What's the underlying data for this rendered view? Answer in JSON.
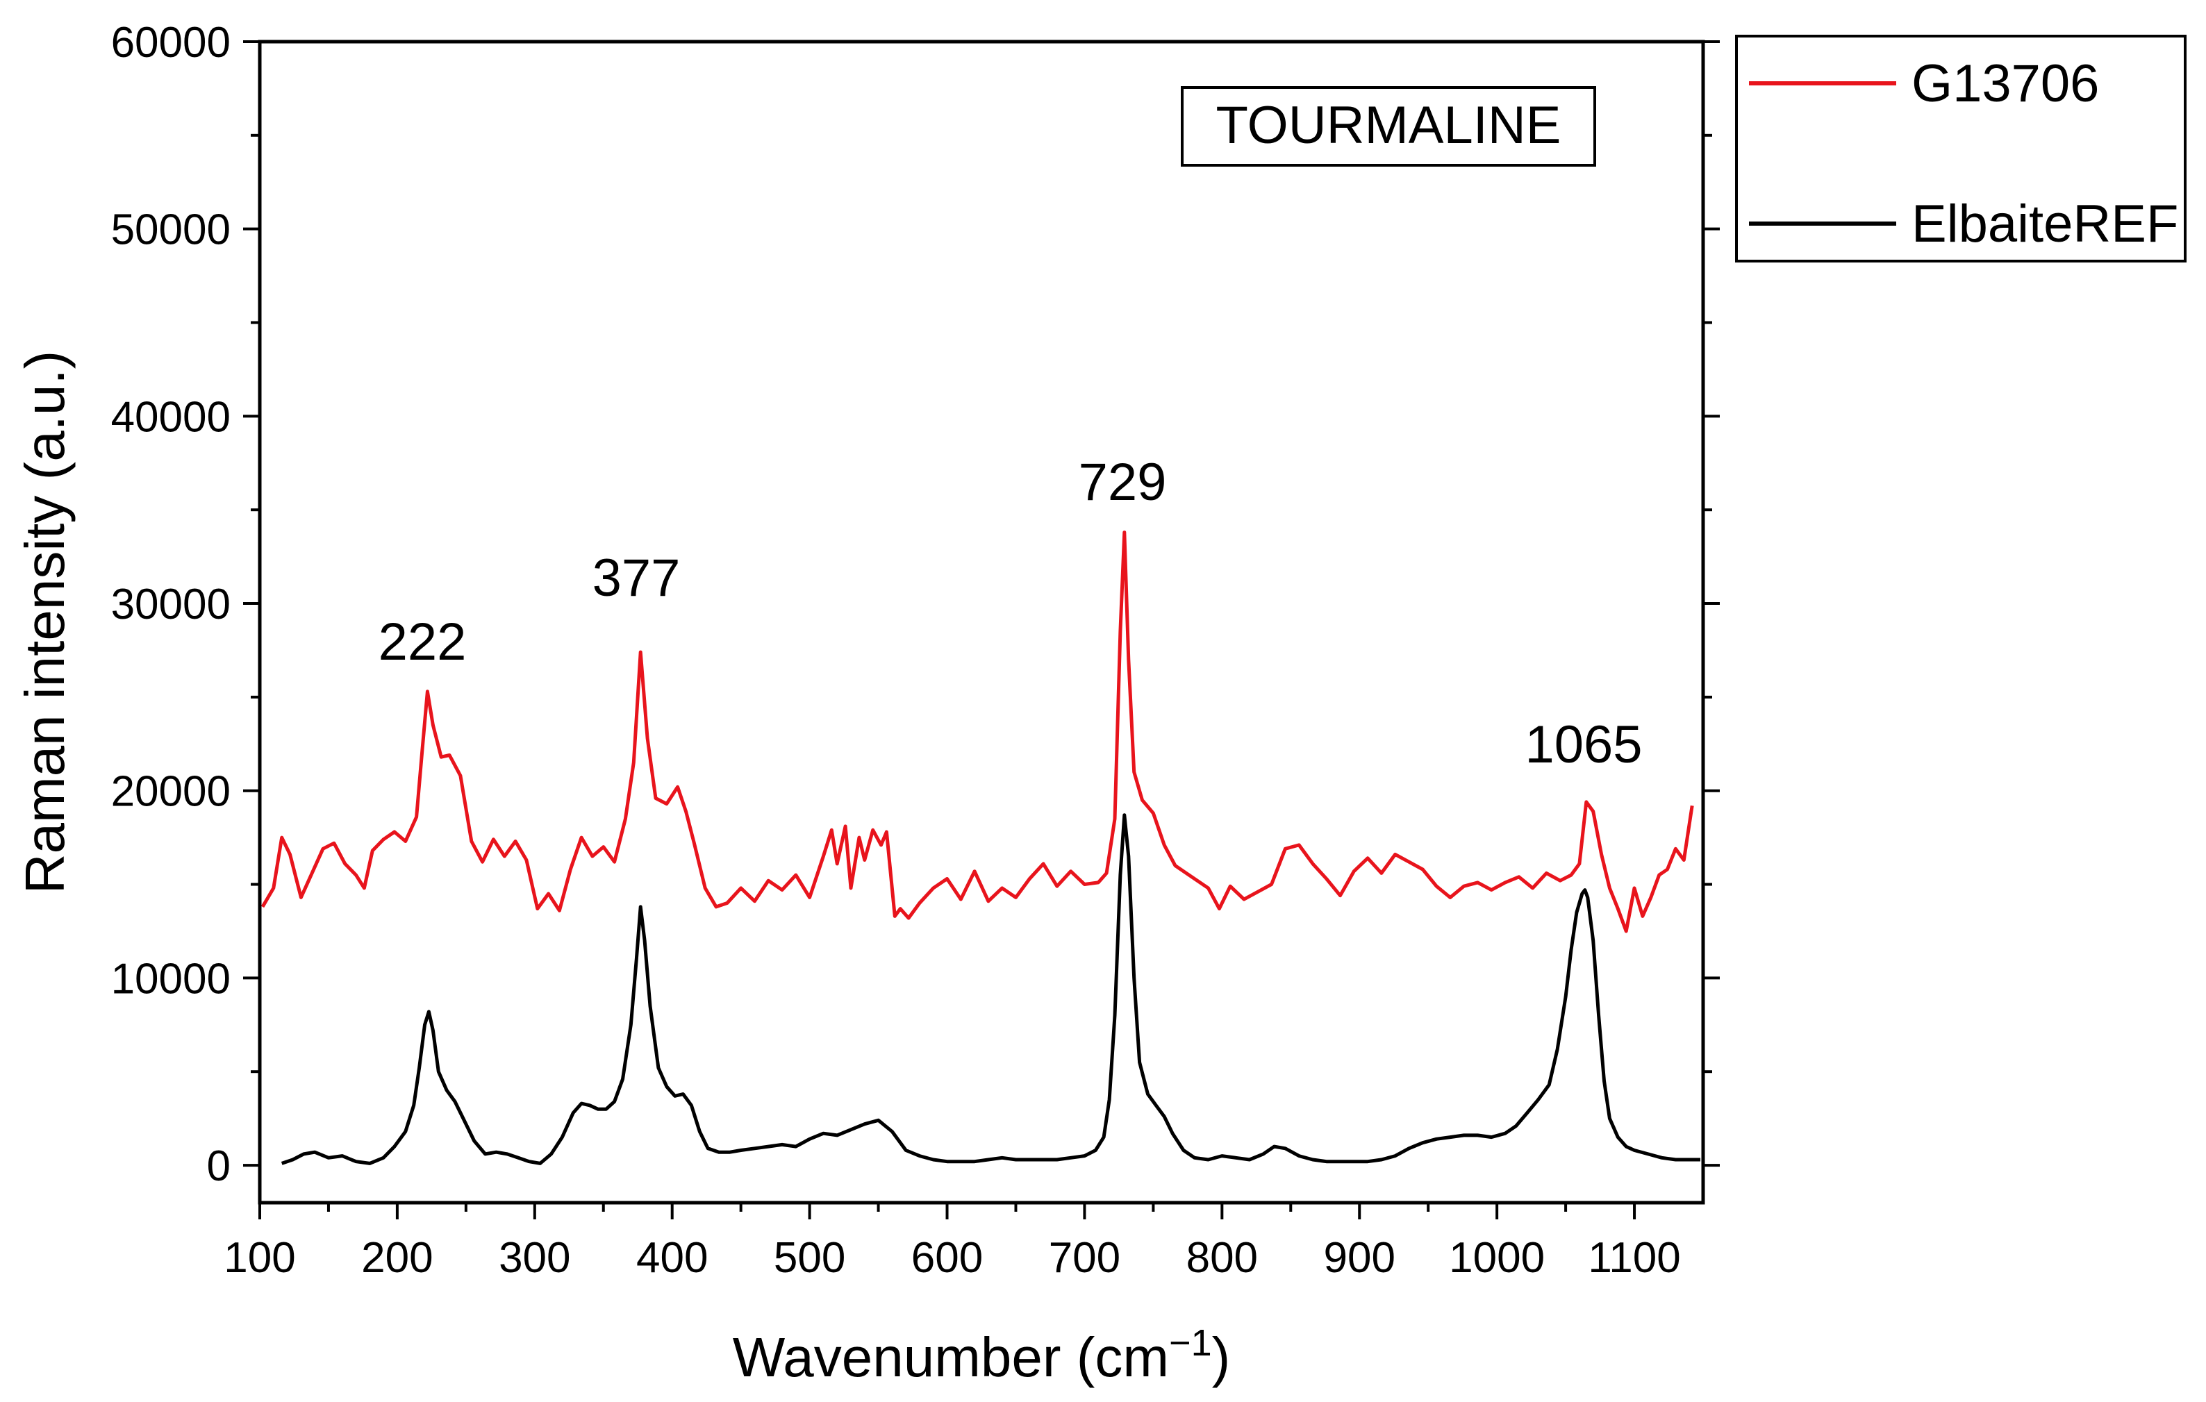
{
  "chart_data": {
    "type": "line",
    "title": "",
    "xlabel": "Wavenumber (cm",
    "xlabel_sup": "−1",
    "xlabel_close": ")",
    "ylabel": "Raman intensity (a.u.)",
    "xlim": [
      100,
      1150
    ],
    "ylim": [
      -2000,
      60000
    ],
    "xticks": [
      100,
      200,
      300,
      400,
      500,
      600,
      700,
      800,
      900,
      1000,
      1100
    ],
    "yticks": [
      0,
      10000,
      20000,
      30000,
      40000,
      50000,
      60000
    ],
    "grid": false,
    "legend_position": "outside-top-right",
    "inset_label": "TOURMALINE",
    "annotations": [
      "222",
      "377",
      "729",
      "1065"
    ],
    "series": [
      {
        "name": "G13706",
        "color": "#e8141c",
        "x": [
          102,
          110,
          116,
          122,
          130,
          138,
          146,
          154,
          162,
          170,
          176,
          182,
          190,
          198,
          206,
          214,
          218,
          222,
          226,
          232,
          238,
          246,
          254,
          262,
          270,
          278,
          286,
          294,
          302,
          310,
          318,
          326,
          334,
          342,
          350,
          358,
          366,
          372,
          377,
          382,
          388,
          396,
          404,
          410,
          416,
          424,
          432,
          440,
          450,
          460,
          470,
          480,
          490,
          500,
          510,
          516,
          520,
          526,
          530,
          536,
          540,
          546,
          552,
          556,
          562,
          566,
          572,
          580,
          590,
          600,
          610,
          620,
          630,
          640,
          650,
          660,
          670,
          680,
          690,
          700,
          710,
          716,
          722,
          726,
          729,
          732,
          736,
          742,
          750,
          758,
          766,
          774,
          782,
          790,
          798,
          806,
          816,
          826,
          836,
          846,
          856,
          866,
          876,
          886,
          896,
          906,
          916,
          926,
          936,
          946,
          956,
          966,
          976,
          986,
          996,
          1006,
          1016,
          1026,
          1036,
          1046,
          1054,
          1060,
          1065,
          1070,
          1076,
          1082,
          1088,
          1094,
          1100,
          1106,
          1112,
          1118,
          1124,
          1130,
          1136,
          1142
        ],
        "y": [
          13800,
          14800,
          17500,
          16600,
          14300,
          15600,
          16900,
          17200,
          16100,
          15500,
          14800,
          16800,
          17400,
          17800,
          17300,
          18600,
          22000,
          25300,
          23500,
          21800,
          21900,
          20800,
          17300,
          16200,
          17400,
          16500,
          17300,
          16300,
          13700,
          14500,
          13600,
          15800,
          17500,
          16500,
          17000,
          16200,
          18500,
          21500,
          27400,
          22800,
          19600,
          19300,
          20200,
          18900,
          17200,
          14800,
          13800,
          14000,
          14800,
          14100,
          15200,
          14700,
          15500,
          14300,
          16500,
          17900,
          16100,
          18100,
          14800,
          17500,
          16300,
          17900,
          17100,
          17800,
          13300,
          13700,
          13200,
          14000,
          14800,
          15300,
          14200,
          15700,
          14100,
          14800,
          14300,
          15300,
          16100,
          14900,
          15700,
          15000,
          15100,
          15600,
          18500,
          28500,
          33800,
          27000,
          21000,
          19500,
          18800,
          17100,
          16000,
          15600,
          15200,
          14800,
          13700,
          14900,
          14200,
          14600,
          15000,
          16900,
          17100,
          16100,
          15300,
          14400,
          15700,
          16400,
          15600,
          16600,
          16200,
          15800,
          14900,
          14300,
          14900,
          15100,
          14700,
          15100,
          15400,
          14800,
          15600,
          15200,
          15500,
          16100,
          19400,
          18900,
          16600,
          14800,
          13700,
          12500,
          14800,
          13300,
          14300,
          15500,
          15800,
          16900,
          16300,
          19200
        ]
      },
      {
        "name": "ElbaiteREF",
        "color": "#000000",
        "x": [
          116,
          124,
          132,
          140,
          150,
          160,
          170,
          180,
          190,
          198,
          206,
          212,
          216,
          220,
          223,
          226,
          230,
          236,
          242,
          248,
          256,
          264,
          272,
          280,
          288,
          296,
          304,
          312,
          320,
          328,
          334,
          340,
          346,
          352,
          358,
          364,
          370,
          374,
          377,
          380,
          384,
          390,
          396,
          402,
          408,
          414,
          420,
          426,
          434,
          442,
          450,
          460,
          470,
          480,
          490,
          500,
          510,
          520,
          530,
          540,
          550,
          560,
          570,
          580,
          590,
          600,
          610,
          620,
          630,
          640,
          650,
          660,
          670,
          680,
          690,
          700,
          708,
          714,
          718,
          722,
          726,
          729,
          732,
          736,
          740,
          746,
          752,
          758,
          764,
          772,
          780,
          790,
          800,
          810,
          820,
          830,
          838,
          846,
          856,
          866,
          876,
          886,
          896,
          906,
          916,
          926,
          936,
          946,
          956,
          966,
          976,
          986,
          996,
          1006,
          1014,
          1022,
          1030,
          1038,
          1044,
          1050,
          1054,
          1058,
          1062,
          1064,
          1066,
          1070,
          1074,
          1078,
          1082,
          1088,
          1094,
          1100,
          1110,
          1120,
          1130,
          1140,
          1148
        ],
        "y": [
          100,
          300,
          600,
          700,
          400,
          500,
          200,
          100,
          400,
          1000,
          1800,
          3200,
          5200,
          7500,
          8200,
          7200,
          5000,
          4000,
          3400,
          2500,
          1300,
          600,
          700,
          600,
          400,
          200,
          100,
          600,
          1500,
          2800,
          3300,
          3200,
          3000,
          3000,
          3400,
          4600,
          7500,
          11000,
          13800,
          12000,
          8500,
          5200,
          4200,
          3700,
          3800,
          3200,
          1800,
          900,
          700,
          700,
          800,
          900,
          1000,
          1100,
          1000,
          1400,
          1700,
          1600,
          1900,
          2200,
          2400,
          1800,
          800,
          500,
          300,
          200,
          200,
          200,
          300,
          400,
          300,
          300,
          300,
          300,
          400,
          500,
          800,
          1500,
          3500,
          8000,
          15500,
          18700,
          16500,
          10000,
          5500,
          3800,
          3200,
          2600,
          1700,
          800,
          400,
          300,
          500,
          400,
          300,
          600,
          1000,
          900,
          500,
          300,
          200,
          200,
          200,
          200,
          300,
          500,
          900,
          1200,
          1400,
          1500,
          1600,
          1600,
          1500,
          1700,
          2100,
          2800,
          3500,
          4300,
          6200,
          9000,
          11500,
          13500,
          14500,
          14700,
          14300,
          12000,
          8000,
          4500,
          2500,
          1500,
          1000,
          800,
          600,
          400,
          300,
          300,
          300
        ]
      }
    ]
  }
}
